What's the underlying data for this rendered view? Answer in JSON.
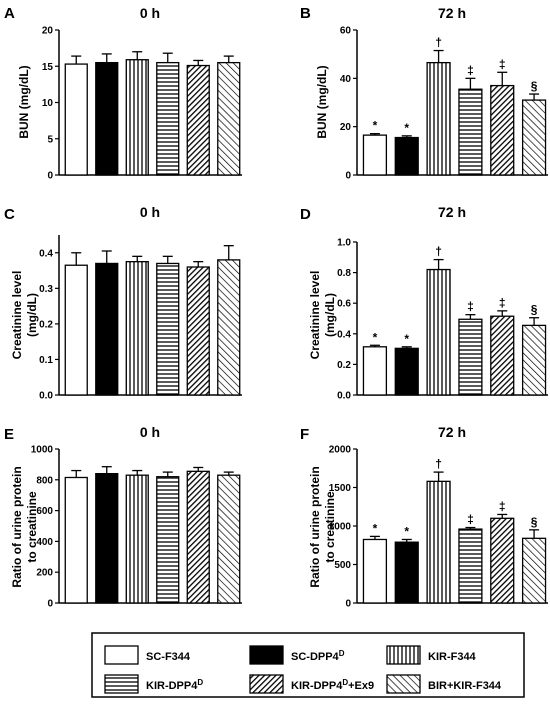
{
  "legend": [
    {
      "id": "sc_f344",
      "label": "SC-F344",
      "sup": "",
      "suffix": "",
      "fill": "white"
    },
    {
      "id": "sc_dpp4d",
      "label": "SC-DPP4",
      "sup": "D",
      "suffix": "",
      "fill": "black"
    },
    {
      "id": "kir_f344",
      "label": "KIR-F344",
      "sup": "",
      "suffix": "",
      "fill": "vertical"
    },
    {
      "id": "kir_dpp4d",
      "label": "KIR-DPP4",
      "sup": "D",
      "suffix": "",
      "fill": "horizontal"
    },
    {
      "id": "kir_dpp4d_ex9",
      "label": "KIR-DPP4",
      "sup": "D",
      "suffix": "+Ex9",
      "fill": "diag-dense"
    },
    {
      "id": "bir_kir_f344",
      "label": "BIR+KIR-F344",
      "sup": "",
      "suffix": "",
      "fill": "diag-back"
    }
  ],
  "chart_data": [
    {
      "panel": "A",
      "type": "bar",
      "title": "0 h",
      "ylabel": [
        "BUN (mg/dL)"
      ],
      "ylim": [
        0,
        20
      ],
      "yticks": [
        0,
        5,
        10,
        15,
        20
      ],
      "values": [
        15.3,
        15.5,
        15.9,
        15.5,
        15.1,
        15.5
      ],
      "errors": [
        1.1,
        1.2,
        1.1,
        1.3,
        0.7,
        0.9
      ],
      "annotations": [
        "",
        "",
        "",
        "",
        "",
        ""
      ]
    },
    {
      "panel": "B",
      "type": "bar",
      "title": "72 h",
      "ylabel": [
        "BUN (mg/dL)"
      ],
      "ylim": [
        0,
        60
      ],
      "yticks": [
        0,
        20,
        40,
        60
      ],
      "values": [
        16.5,
        15.5,
        46.5,
        35.5,
        37.0,
        31.0
      ],
      "errors": [
        0.6,
        0.7,
        5.0,
        4.5,
        5.5,
        2.5
      ],
      "annotations": [
        "*",
        "*",
        "†",
        "‡",
        "‡",
        "§"
      ]
    },
    {
      "panel": "C",
      "type": "bar",
      "title": "0 h",
      "ylabel": [
        "Creatinine level",
        "(mg/dL)"
      ],
      "ylim": [
        0,
        0.45
      ],
      "yticks": [
        "0.0",
        "0.1",
        "0.2",
        "0.3",
        "0.4"
      ],
      "values": [
        0.365,
        0.37,
        0.375,
        0.37,
        0.36,
        0.38
      ],
      "errors": [
        0.035,
        0.035,
        0.015,
        0.02,
        0.015,
        0.04
      ],
      "annotations": [
        "",
        "",
        "",
        "",
        "",
        ""
      ]
    },
    {
      "panel": "D",
      "type": "bar",
      "title": "72 h",
      "ylabel": [
        "Creatinine level",
        "(mg/dL)"
      ],
      "ylim": [
        0,
        1.0
      ],
      "yticks": [
        "0.0",
        "0.2",
        "0.4",
        "0.6",
        "0.8",
        "1.0"
      ],
      "values": [
        0.315,
        0.305,
        0.82,
        0.495,
        0.515,
        0.455
      ],
      "errors": [
        0.01,
        0.01,
        0.065,
        0.03,
        0.035,
        0.05
      ],
      "annotations": [
        "*",
        "*",
        "†",
        "‡",
        "‡",
        "§"
      ]
    },
    {
      "panel": "E",
      "type": "bar",
      "title": "0 h",
      "ylabel": [
        "Ratio of urine protein",
        "to creatinine"
      ],
      "ylim": [
        0,
        1000
      ],
      "yticks": [
        0,
        200,
        400,
        600,
        800,
        1000
      ],
      "values": [
        815,
        840,
        830,
        820,
        855,
        830
      ],
      "errors": [
        45,
        45,
        30,
        30,
        25,
        20
      ],
      "annotations": [
        "",
        "",
        "",
        "",
        "",
        ""
      ]
    },
    {
      "panel": "F",
      "type": "bar",
      "title": "72 h",
      "ylabel": [
        "Ratio of urine protein",
        "to creatinine"
      ],
      "ylim": [
        0,
        2000
      ],
      "yticks": [
        0,
        500,
        1000,
        1500,
        2000
      ],
      "values": [
        825,
        790,
        1580,
        960,
        1100,
        840
      ],
      "errors": [
        40,
        35,
        120,
        20,
        50,
        110
      ],
      "annotations": [
        "*",
        "*",
        "†",
        "‡",
        "‡",
        "§"
      ]
    }
  ]
}
